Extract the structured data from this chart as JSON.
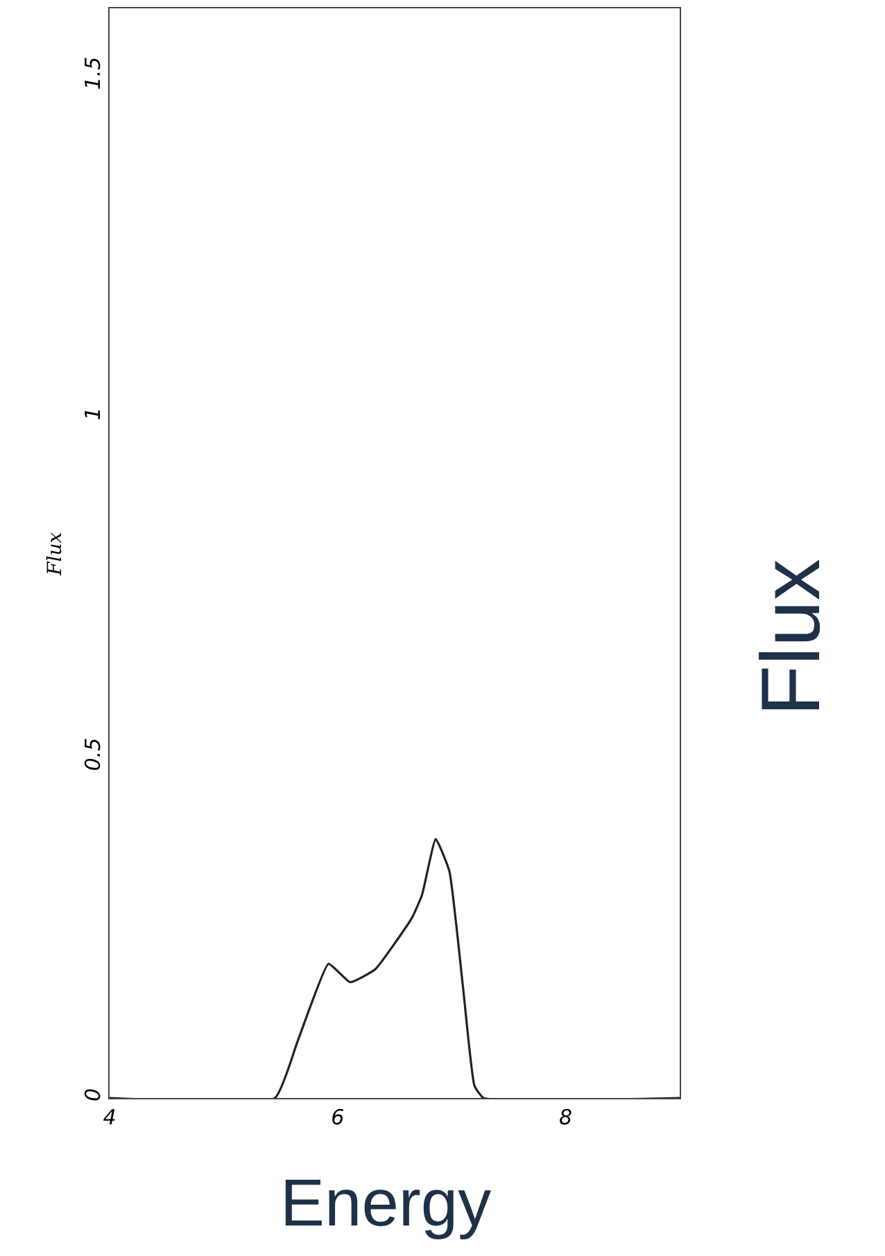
{
  "chart_data": {
    "type": "line",
    "xlabel": "Energy",
    "ylabel": "Flux",
    "annotations": [
      "Flux"
    ],
    "x": [
      4,
      5.45,
      5.64,
      5.76,
      5.92,
      6.11,
      6.33,
      6.65,
      6.74,
      6.86,
      6.98,
      7.1,
      7.2,
      7.28,
      9
    ],
    "series": [
      {
        "color": "#222222",
        "values": [
          0,
          0,
          0.079,
          0.134,
          0.197,
          0.17,
          0.189,
          0.264,
          0.298,
          0.38,
          0.333,
          0.162,
          0.018,
          0,
          0
        ]
      }
    ],
    "xlim": [
      4,
      9
    ],
    "ylim": [
      0,
      1.6
    ],
    "xticks": [
      4,
      6,
      8
    ],
    "yticks": [
      0,
      0.5,
      1,
      1.5
    ],
    "marker": "none",
    "line_style": "solid"
  }
}
